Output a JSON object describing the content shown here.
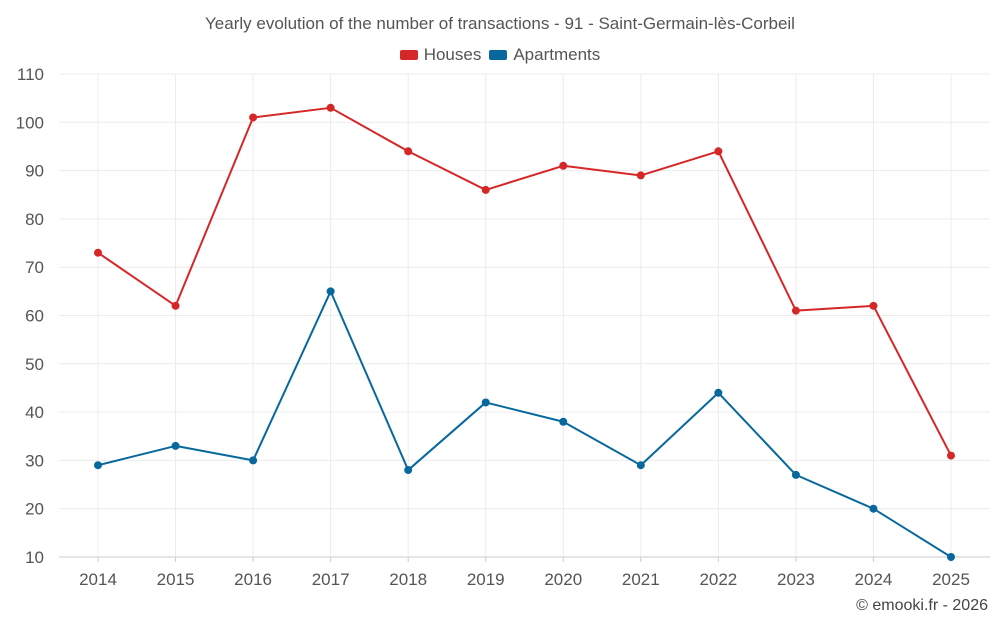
{
  "chart_data": {
    "type": "line",
    "title": "Yearly evolution of the number of transactions - 91 - Saint-Germain-lès-Corbeil",
    "categories": [
      "2014",
      "2015",
      "2016",
      "2017",
      "2018",
      "2019",
      "2020",
      "2021",
      "2022",
      "2023",
      "2024",
      "2025"
    ],
    "series": [
      {
        "name": "Houses",
        "color": "#d62728",
        "values": [
          73,
          62,
          101,
          103,
          94,
          86,
          91,
          89,
          94,
          61,
          62,
          31
        ]
      },
      {
        "name": "Apartments",
        "color": "#08689d",
        "values": [
          29,
          33,
          30,
          65,
          28,
          42,
          38,
          29,
          44,
          27,
          20,
          10
        ]
      }
    ],
    "ylim": [
      10,
      110
    ],
    "yticks": [
      "10",
      "20",
      "30",
      "40",
      "50",
      "60",
      "70",
      "80",
      "90",
      "100",
      "110"
    ],
    "xlabel": "",
    "ylabel": "",
    "grid": true,
    "legend_position": "top-center"
  },
  "credit": "© emooki.fr - 2026"
}
